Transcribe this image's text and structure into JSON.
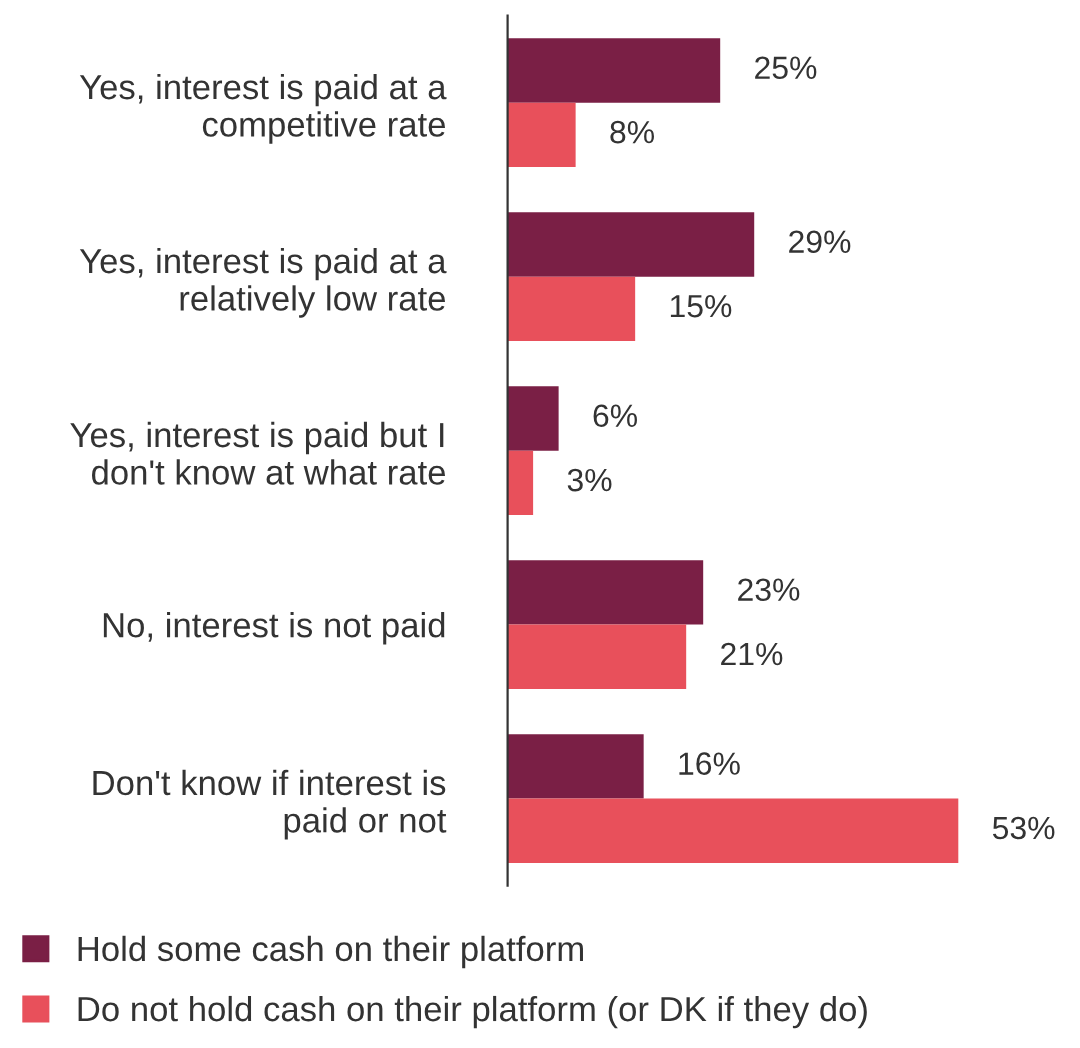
{
  "chart_data": {
    "type": "bar",
    "orientation": "horizontal",
    "categories": [
      "Yes, interest is paid at a\ncompetitive rate",
      "Yes, interest is paid at a\nrelatively low rate",
      "Yes, interest is paid but I\ndon't know at what rate",
      "No, interest is not paid",
      "Don't know if interest is\npaid or not"
    ],
    "series": [
      {
        "name": "Hold some cash on their platform",
        "color": "#7a1f45",
        "values": [
          25,
          29,
          6,
          23,
          16
        ],
        "value_labels": [
          "25%",
          "29%",
          "6%",
          "23%",
          "16%"
        ]
      },
      {
        "name": "Do not hold cash on their platform (or DK if they do)",
        "color": "#e8505b",
        "values": [
          8,
          15,
          3,
          21,
          53
        ],
        "value_labels": [
          "8%",
          "15%",
          "3%",
          "21%",
          "53%"
        ]
      }
    ],
    "tick_labels": "y",
    "grid": false,
    "legend": "bottom"
  }
}
